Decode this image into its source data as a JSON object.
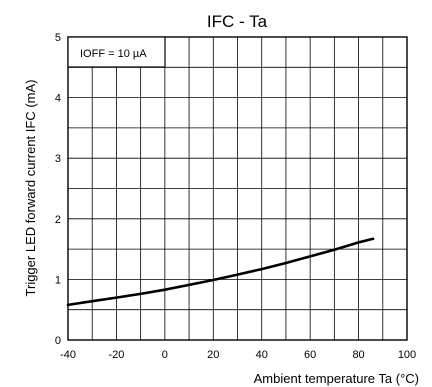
{
  "chart_data": {
    "type": "line",
    "title": "IFC - Ta",
    "xlabel": "Ambient temperature Ta (°C)",
    "ylabel": "Trigger LED forward current IFC (mA)",
    "annotation": "IOFF = 10 µA",
    "xlim": [
      -40,
      100
    ],
    "ylim": [
      0,
      5
    ],
    "grid": true,
    "x_ticks": [
      -40,
      -20,
      0,
      20,
      40,
      60,
      80,
      100
    ],
    "x_tick_labels": [
      "-40",
      "-20",
      "0",
      "20",
      "40",
      "60",
      "80",
      "100"
    ],
    "y_ticks": [
      0,
      1,
      2,
      3,
      4,
      5
    ],
    "y_tick_labels": [
      "0",
      "1",
      "2",
      "3",
      "4",
      "5"
    ],
    "series": [
      {
        "x": [
          -40,
          -30,
          -20,
          -10,
          0,
          10,
          20,
          30,
          40,
          50,
          60,
          70,
          80,
          86
        ],
        "y": [
          0.58,
          0.64,
          0.7,
          0.76,
          0.83,
          0.91,
          0.99,
          1.08,
          1.17,
          1.27,
          1.38,
          1.49,
          1.61,
          1.67
        ]
      }
    ]
  }
}
